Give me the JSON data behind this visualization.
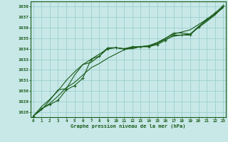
{
  "background_color": "#c8e8e8",
  "grid_color": "#9ecece",
  "line_color": "#1a5c1a",
  "title": "Graphe pression niveau de la mer (hPa)",
  "ylabel_ticks": [
    1028,
    1029,
    1030,
    1031,
    1032,
    1033,
    1034,
    1035,
    1036,
    1037,
    1038
  ],
  "xlim": [
    -0.3,
    23.3
  ],
  "ylim": [
    1027.5,
    1038.5
  ],
  "series": [
    [
      1027.6,
      1028.3,
      1028.7,
      1029.1,
      1030.1,
      1030.5,
      1031.2,
      1033.0,
      1033.3,
      1034.0,
      1034.1,
      1034.0,
      1034.2,
      1034.2,
      1034.2,
      1034.4,
      1034.8,
      1035.3,
      1035.3,
      1035.3,
      1036.1,
      1036.8,
      1037.4,
      1038.1
    ],
    [
      1027.6,
      1028.3,
      1028.8,
      1029.5,
      1030.3,
      1030.8,
      1031.5,
      1032.2,
      1032.6,
      1033.1,
      1033.5,
      1033.9,
      1034.1,
      1034.2,
      1034.3,
      1034.6,
      1035.0,
      1035.4,
      1035.6,
      1035.8,
      1036.3,
      1036.8,
      1037.3,
      1037.9
    ],
    [
      1027.6,
      1028.2,
      1029.1,
      1030.1,
      1030.2,
      1031.5,
      1032.5,
      1032.7,
      1033.3,
      1034.1,
      1034.1,
      1034.0,
      1034.1,
      1034.2,
      1034.2,
      1034.5,
      1034.9,
      1035.2,
      1035.3,
      1035.4,
      1036.0,
      1036.6,
      1037.2,
      1038.0
    ],
    [
      1027.6,
      1028.5,
      1029.2,
      1030.0,
      1031.0,
      1031.8,
      1032.5,
      1033.0,
      1033.5,
      1034.0,
      1034.1,
      1034.0,
      1034.0,
      1034.2,
      1034.3,
      1034.5,
      1035.0,
      1035.5,
      1035.5,
      1035.4,
      1036.1,
      1036.7,
      1037.3,
      1038.0
    ]
  ]
}
